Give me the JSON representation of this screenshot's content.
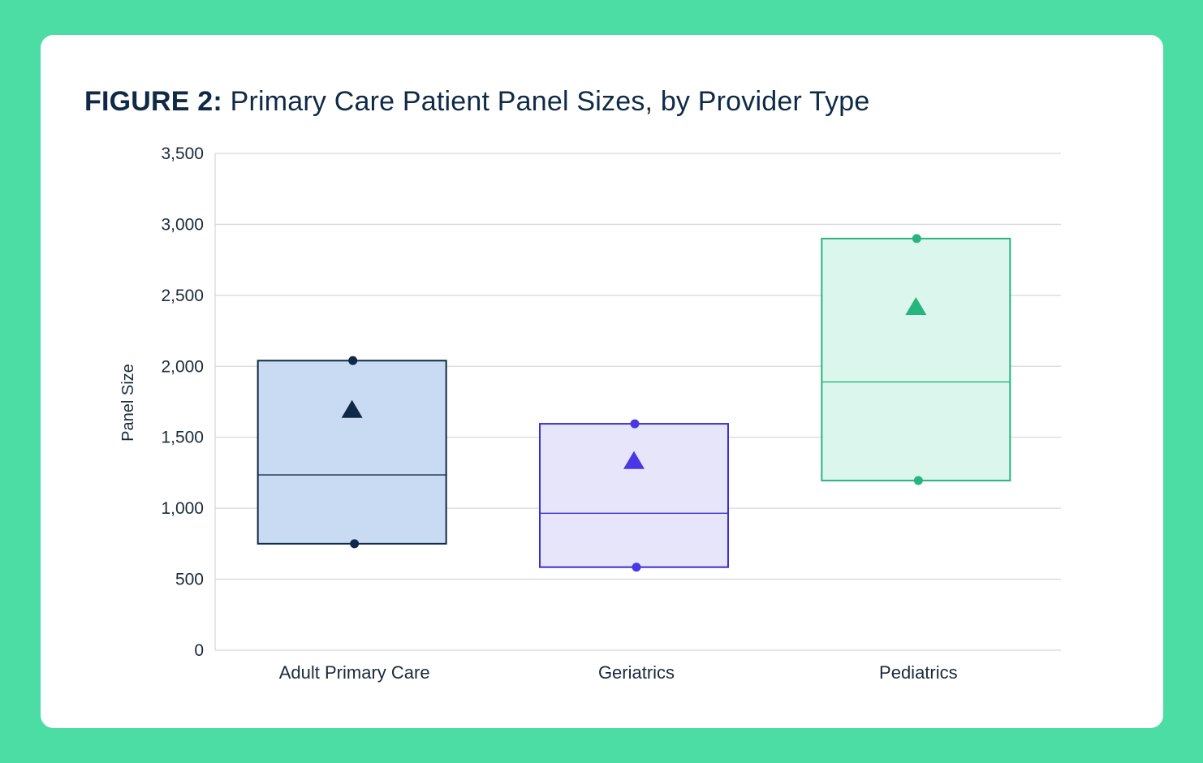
{
  "figure": {
    "prefix": "FIGURE 2:",
    "title": "Primary Care Patient Panel Sizes, by Provider Type"
  },
  "colors": {
    "background": "#4cdda4",
    "card": "#ffffff",
    "grid": "#d6d9dc",
    "text": "#1b2a3a"
  },
  "chart_data": {
    "type": "box",
    "ylabel": "Panel Size",
    "xlabel": "",
    "ylim": [
      0,
      3500
    ],
    "yticks": [
      0,
      500,
      1000,
      1500,
      2000,
      2500,
      3000,
      3500
    ],
    "ytick_labels": [
      "0",
      "500",
      "1,000",
      "1,500",
      "2,000",
      "2,500",
      "3,000",
      "3,500"
    ],
    "grid": true,
    "categories": [
      "Adult Primary Care",
      "Geriatrics",
      "Pediatrics"
    ],
    "series": [
      {
        "category": "Adult Primary Care",
        "low": 750,
        "high": 2040,
        "median": 1235,
        "mean": 1700,
        "stroke": "#0f2a46",
        "fill": "#c9dbf3",
        "marker": "#0f2a46"
      },
      {
        "category": "Geriatrics",
        "low": 585,
        "high": 1595,
        "median": 965,
        "mean": 1340,
        "stroke": "#3a2ed6",
        "fill": "#e6e5fa",
        "marker": "#4a36e4"
      },
      {
        "category": "Pediatrics",
        "low": 1195,
        "high": 2900,
        "median": 1890,
        "mean": 2425,
        "stroke": "#27b57f",
        "fill": "#dbf6ec",
        "marker": "#27b57f"
      }
    ]
  }
}
